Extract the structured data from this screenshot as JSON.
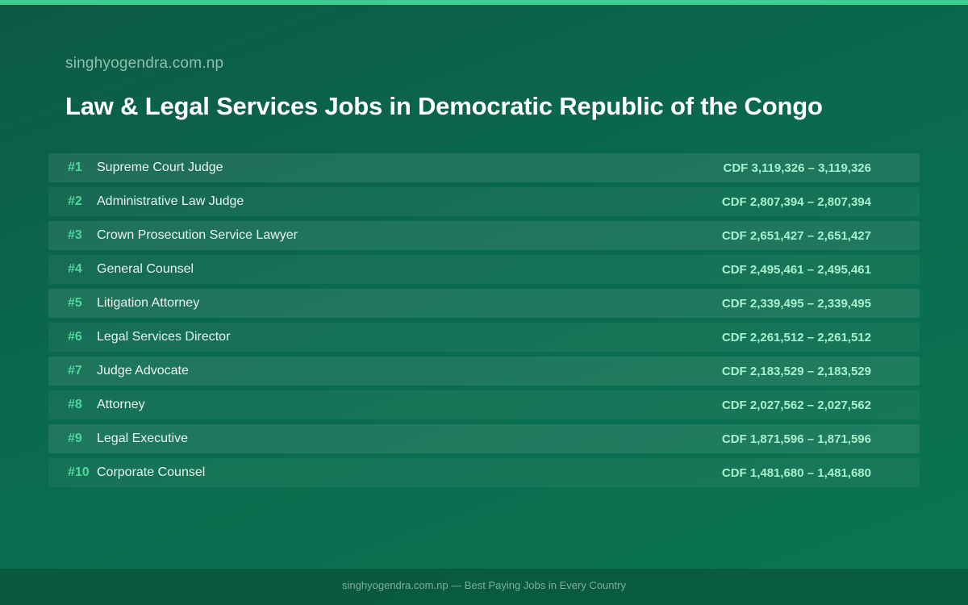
{
  "site": "singhyogendra.com.np",
  "title": "Law & Legal Services Jobs in Democratic Republic of the Congo",
  "jobs": [
    {
      "rank": "#1",
      "title": "Supreme Court Judge",
      "salary": "CDF 3,119,326 – 3,119,326"
    },
    {
      "rank": "#2",
      "title": "Administrative Law Judge",
      "salary": "CDF 2,807,394 – 2,807,394"
    },
    {
      "rank": "#3",
      "title": "Crown Prosecution Service Lawyer",
      "salary": "CDF 2,651,427 – 2,651,427"
    },
    {
      "rank": "#4",
      "title": "General Counsel",
      "salary": "CDF 2,495,461 – 2,495,461"
    },
    {
      "rank": "#5",
      "title": "Litigation Attorney",
      "salary": "CDF 2,339,495 – 2,339,495"
    },
    {
      "rank": "#6",
      "title": "Legal Services Director",
      "salary": "CDF 2,261,512 – 2,261,512"
    },
    {
      "rank": "#7",
      "title": "Judge Advocate",
      "salary": "CDF 2,183,529 – 2,183,529"
    },
    {
      "rank": "#8",
      "title": "Attorney",
      "salary": "CDF 2,027,562 – 2,027,562"
    },
    {
      "rank": "#9",
      "title": "Legal Executive",
      "salary": "CDF 1,871,596 – 1,871,596"
    },
    {
      "rank": "#10",
      "title": "Corporate Counsel",
      "salary": "CDF 1,481,680 – 1,481,680"
    }
  ],
  "footer": "singhyogendra.com.np — Best Paying Jobs in Every Country",
  "colors": {
    "accent": "#3ccf8e",
    "rank": "#4fd79b",
    "salary": "#a8f0cc",
    "background": "#0a6a4e"
  }
}
